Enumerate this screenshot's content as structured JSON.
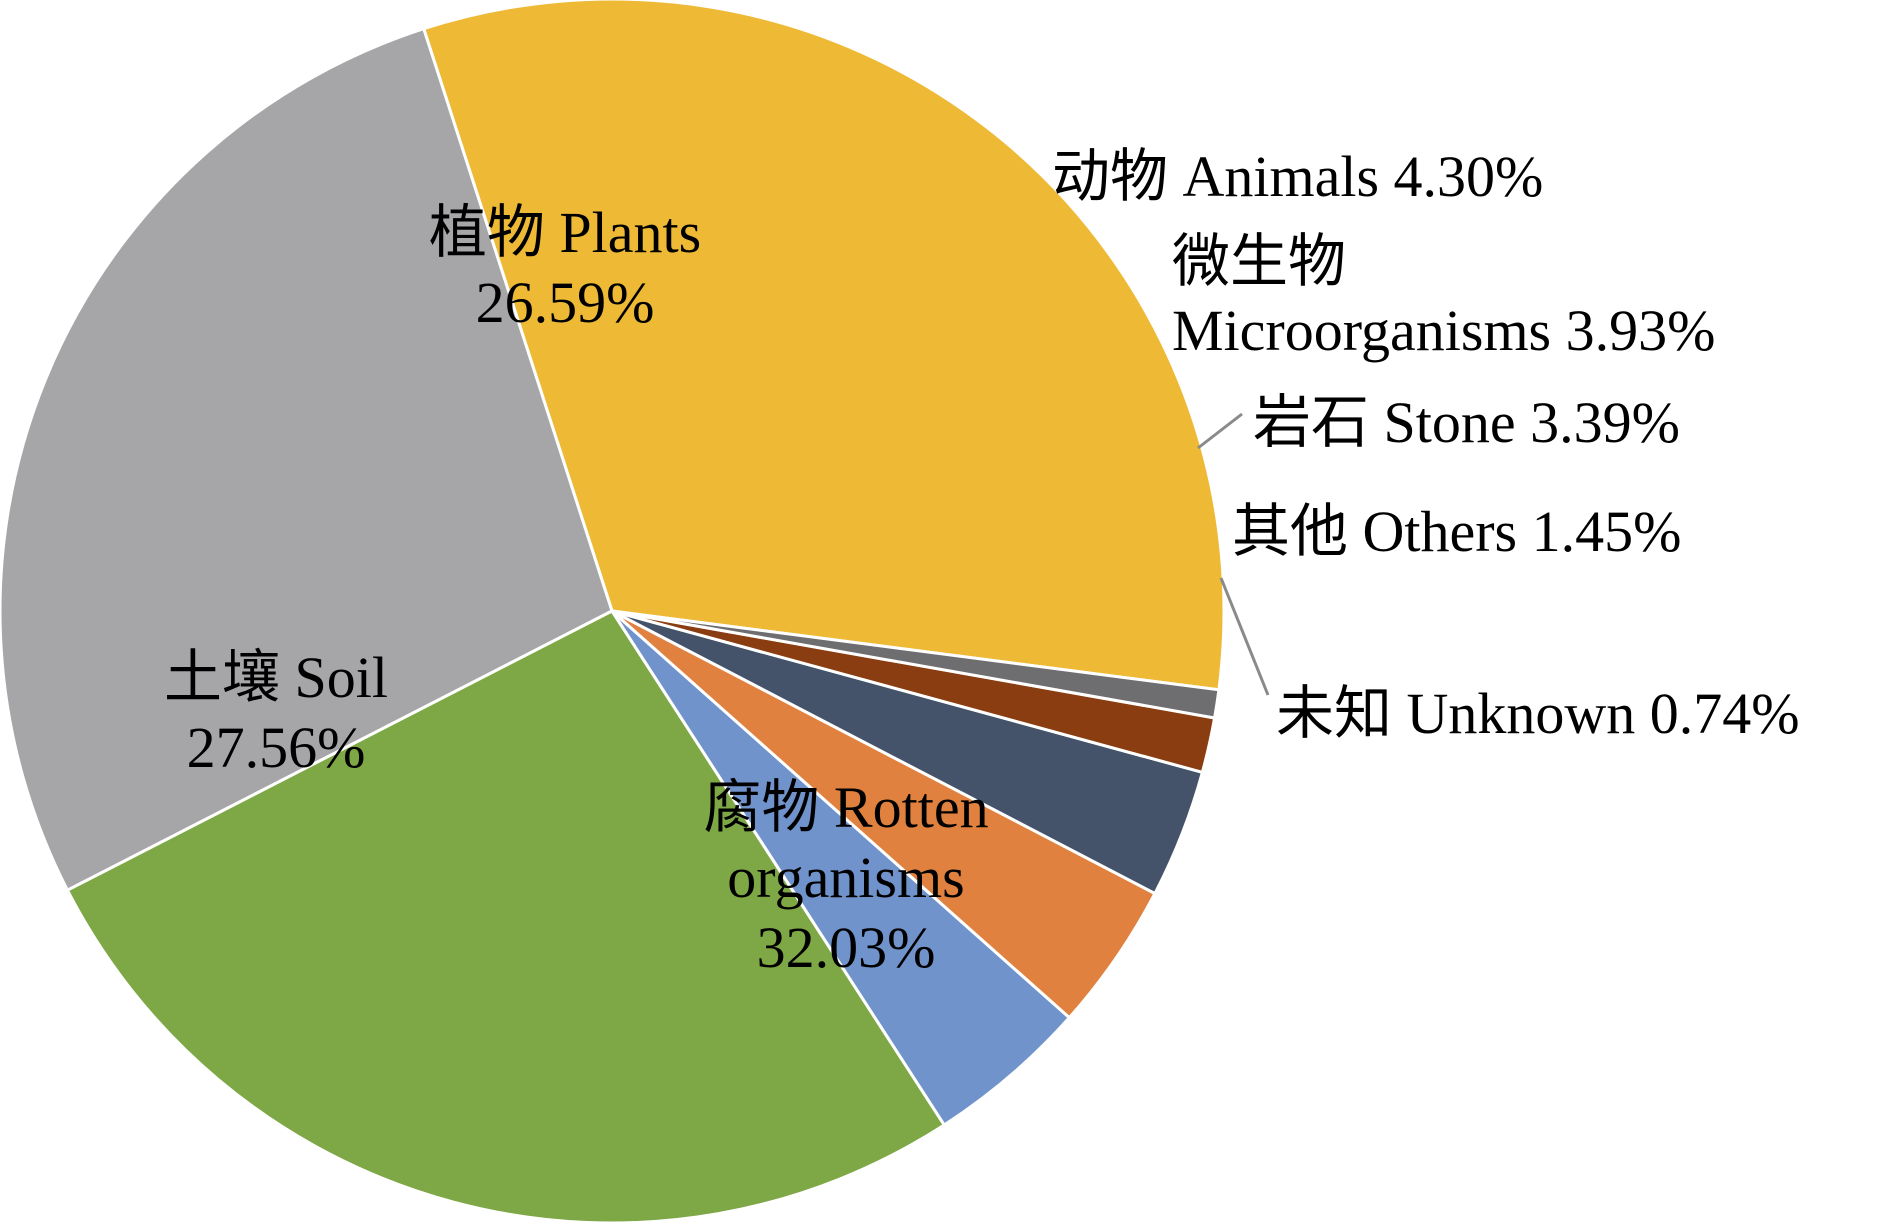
{
  "chart_data": {
    "type": "pie",
    "slices": [
      {
        "label": "腐物 Rotten organisms",
        "value": 32.03,
        "value_text": "32.03%",
        "color": "#EEBA36"
      },
      {
        "label": "土壤 Soil",
        "value": 27.56,
        "value_text": "27.56%",
        "color": "#A6A5A8"
      },
      {
        "label": "植物 Plants",
        "value": 26.59,
        "value_text": "26.59%",
        "color": "#7EA746"
      },
      {
        "label": "动物 Animals",
        "value": 4.3,
        "value_text": "4.30%",
        "color": "#7193CC"
      },
      {
        "label": "微生物 Microorganisms",
        "value": 3.93,
        "value_text": "3.93%",
        "color": "#E0813F"
      },
      {
        "label": "岩石 Stone",
        "value": 3.39,
        "value_text": "3.39%",
        "color": "#44536A"
      },
      {
        "label": "其他 Others",
        "value": 1.45,
        "value_text": "1.45%",
        "color": "#8A3D10"
      },
      {
        "label": "未知 Unknown",
        "value": 0.74,
        "value_text": "0.74%",
        "color": "#6E6D70"
      }
    ],
    "text": {
      "rotten_l1": "腐物 Rotten",
      "rotten_l2": "organisms",
      "rotten_l3": "32.03%",
      "soil_l1": "土壤 Soil",
      "soil_l2": "27.56%",
      "plants_l1": "植物 Plants",
      "plants_l2": "26.59%",
      "animals": "动物 Animals 4.30%",
      "micro_l1": "微生物",
      "micro_l2": "Microorganisms 3.93%",
      "stone": "岩石 Stone 3.39%",
      "others": "其他 Others 1.45%",
      "unknown": "未知 Unknown 0.74%"
    }
  }
}
